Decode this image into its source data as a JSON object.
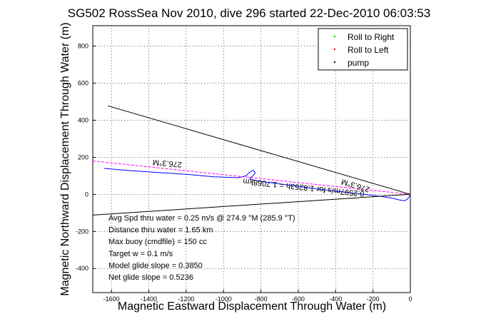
{
  "chart_data": {
    "type": "line",
    "title": "SG502 RossSea Nov 2010, dive 296 started 22-Dec-2010 06:03:53",
    "xlabel": "Magnetic Eastward Displacement Through Water (m)",
    "ylabel": "Magnetic Northward Displacement Through Water (m)",
    "xlim": [
      -1700,
      0
    ],
    "ylim": [
      -530,
      910
    ],
    "xticks": [
      -1600,
      -1400,
      -1200,
      -1000,
      -800,
      -600,
      -400,
      -200,
      0
    ],
    "yticks": [
      -400,
      -200,
      0,
      200,
      400,
      600,
      800
    ],
    "grid": true,
    "legend_position": "top-right",
    "legend": [
      {
        "label": "Roll to Right",
        "color": "#00cc00",
        "marker": "dot"
      },
      {
        "label": "Roll to Left",
        "color": "#ff0000",
        "marker": "dot"
      },
      {
        "label": "pump",
        "color": "#000000",
        "marker": "dot"
      }
    ],
    "series": [
      {
        "style": "track",
        "color": "#0000ff",
        "x": [
          -1640,
          -1500,
          -1350,
          -1200,
          -1050,
          -920,
          -880,
          -860,
          -840,
          -830,
          -845,
          -860,
          -850,
          -800,
          -650,
          -500,
          -350,
          -250,
          -150,
          -90,
          -60,
          -30,
          -15,
          -5,
          0
        ],
        "y": [
          140,
          128,
          118,
          108,
          95,
          90,
          100,
          120,
          130,
          115,
          98,
          88,
          80,
          70,
          50,
          30,
          12,
          0,
          -12,
          -22,
          -30,
          -35,
          -25,
          -10,
          0
        ]
      },
      {
        "style": "dashed",
        "color": "#ff00ff",
        "x": [
          -1700,
          0
        ],
        "y": [
          180,
          0
        ]
      },
      {
        "style": "solid",
        "color": "#000000",
        "x": [
          -1620,
          0
        ],
        "y": [
          478,
          0
        ]
      },
      {
        "style": "solid",
        "color": "#000000",
        "x": [
          -1700,
          0
        ],
        "y": [
          -112,
          0
        ]
      }
    ],
    "annotations": {
      "rotated": [
        {
          "text": "276.3°M",
          "x": -1300,
          "y": 180,
          "angle": 185
        },
        {
          "text": "0.2597m/s for 1.8253h = 1.7068km",
          "x": -570,
          "y": 50,
          "angle": 186
        },
        {
          "text": "276.3°M",
          "x": -290,
          "y": 60,
          "angle": 197
        }
      ],
      "stats": [
        "Avg Spd thru water =  0.25 m/s @ 274.9   °M (285.9 °T)",
        "Distance thru water =  1.65 km",
        "Max buoy (cmdfile) = 150 cc",
        "Target w = 0.1 m/s",
        "Model glide slope = 0.3850",
        "Net glide slope = 0.5236"
      ]
    }
  }
}
